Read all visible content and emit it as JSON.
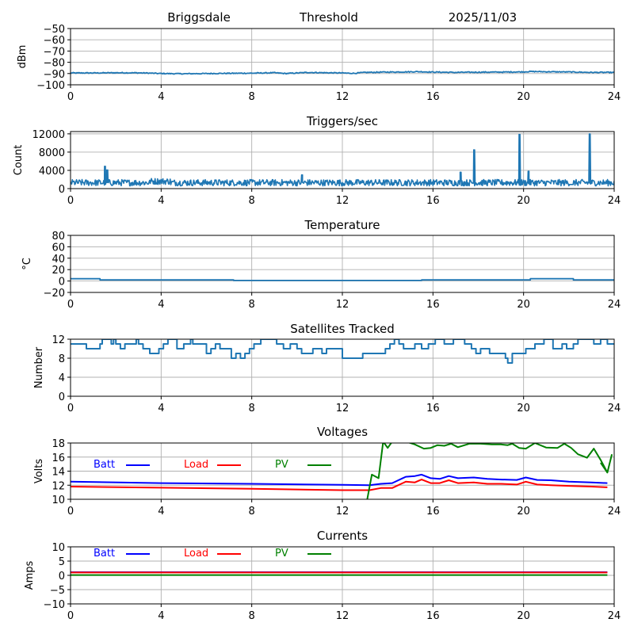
{
  "header": {
    "station": "Briggsdale",
    "mode": "Threshold",
    "date": "2025/11/03"
  },
  "colors": {
    "default_series": "#1f77b4",
    "batt": "#0000ff",
    "load": "#ff0000",
    "pv": "#008000",
    "grid": "#b0b0b0"
  },
  "chart_data": [
    {
      "id": "threshold",
      "type": "line",
      "title": "",
      "xlabel": "",
      "ylabel": "dBm",
      "xlim": [
        0,
        24
      ],
      "ylim": [
        -100,
        -50
      ],
      "xticks": [
        0,
        4,
        8,
        12,
        16,
        20,
        24
      ],
      "yticks": [
        -100,
        -90,
        -80,
        -70,
        -60,
        -50
      ],
      "ytick_labels": [
        "−100",
        "−90",
        "−80",
        "−70",
        "−60",
        "−50"
      ],
      "grid": true,
      "series": [
        {
          "name": "Threshold",
          "color": "#1f77b4",
          "x": [
            0,
            1,
            2,
            3,
            3.5,
            4,
            5,
            6,
            7,
            8,
            8.5,
            9,
            9.5,
            10,
            10.5,
            11,
            12,
            12.5,
            13,
            14,
            15,
            15.3,
            16,
            17,
            18,
            19,
            20,
            20.3,
            21,
            22,
            23,
            24
          ],
          "y": [
            -89.5,
            -89.5,
            -89.3,
            -89.4,
            -89.6,
            -90,
            -90.2,
            -90,
            -89.8,
            -89.7,
            -89.5,
            -89.3,
            -90,
            -89.5,
            -89,
            -89.2,
            -89.5,
            -89.8,
            -89,
            -88.7,
            -88.5,
            -88.3,
            -88.7,
            -89,
            -88.8,
            -88.7,
            -88.5,
            -88.2,
            -88.4,
            -88.6,
            -89,
            -89
          ]
        }
      ]
    },
    {
      "id": "triggers",
      "type": "line",
      "title": "Triggers/sec",
      "xlabel": "",
      "ylabel": "Count",
      "xlim": [
        0,
        24
      ],
      "ylim": [
        0,
        12500
      ],
      "xticks": [
        0,
        4,
        8,
        12,
        16,
        20,
        24
      ],
      "yticks": [
        0,
        4000,
        8000,
        12000
      ],
      "ytick_labels": [
        "0",
        "4000",
        "8000",
        "12000"
      ],
      "grid": true,
      "baseline_mean": 1300,
      "series": [
        {
          "name": "Triggers",
          "color": "#1f77b4",
          "spikes": [
            {
              "x": 1.5,
              "y": 4900
            },
            {
              "x": 1.6,
              "y": 4100
            },
            {
              "x": 10.2,
              "y": 3000
            },
            {
              "x": 17.2,
              "y": 3600
            },
            {
              "x": 17.8,
              "y": 8500
            },
            {
              "x": 19.8,
              "y": 11900
            },
            {
              "x": 20.2,
              "y": 3800
            },
            {
              "x": 22.9,
              "y": 12000
            }
          ]
        }
      ]
    },
    {
      "id": "temperature",
      "type": "line",
      "title": "Temperature",
      "xlabel": "",
      "ylabel": "°C",
      "xlim": [
        0,
        24
      ],
      "ylim": [
        -20,
        80
      ],
      "xticks": [
        0,
        4,
        8,
        12,
        16,
        20,
        24
      ],
      "yticks": [
        -20,
        0,
        20,
        40,
        60,
        80
      ],
      "ytick_labels": [
        "−20",
        "0",
        "20",
        "40",
        "60",
        "80"
      ],
      "grid": true,
      "series": [
        {
          "name": "Temperature",
          "color": "#1f77b4",
          "x": [
            0,
            1.3,
            1.3,
            7.2,
            7.2,
            15.5,
            15.5,
            20.3,
            20.3,
            22.2,
            22.2,
            24
          ],
          "y": [
            4,
            4,
            2,
            2,
            1,
            1,
            2,
            2,
            4,
            4,
            2,
            2
          ]
        }
      ]
    },
    {
      "id": "satellites",
      "type": "line",
      "title": "Satellites Tracked",
      "xlabel": "",
      "ylabel": "Number",
      "xlim": [
        0,
        24
      ],
      "ylim": [
        0,
        12
      ],
      "xticks": [
        0,
        4,
        8,
        12,
        16,
        20,
        24
      ],
      "yticks": [
        0,
        4,
        8,
        12
      ],
      "ytick_labels": [
        "0",
        "4",
        "8",
        "12"
      ],
      "grid": true,
      "series": [
        {
          "name": "Satellites",
          "color": "#1f77b4",
          "x": [
            0,
            0.7,
            1.3,
            1.4,
            1.5,
            1.8,
            1.9,
            2,
            2.1,
            2.2,
            2.4,
            2.6,
            2.9,
            3,
            3.2,
            3.5,
            3.9,
            4.1,
            4.3,
            4.4,
            4.7,
            5,
            5.3,
            5.4,
            5.5,
            5.7,
            6,
            6.2,
            6.4,
            6.6,
            6.8,
            7.1,
            7.3,
            7.5,
            7.7,
            7.9,
            8.1,
            8.4,
            8.7,
            9.1,
            9.4,
            9.7,
            10,
            10.2,
            10.7,
            11,
            11.1,
            11.3,
            11.5,
            11.6,
            12,
            12.5,
            12.9,
            13.2,
            13.9,
            14.1,
            14.3,
            14.5,
            14.7,
            15.2,
            15.5,
            15.8,
            16.1,
            16.5,
            16.9,
            17.4,
            17.7,
            17.9,
            18.1,
            18.5,
            18.9,
            19.2,
            19.3,
            19.5,
            19.8,
            20.1,
            20.5,
            20.9,
            21.3,
            21.7,
            21.9,
            22.2,
            22.4,
            22.6,
            22.9,
            23.1,
            23.4,
            23.7,
            24
          ],
          "y": [
            11,
            10,
            11,
            12,
            12,
            11,
            12,
            11,
            11,
            10,
            11,
            11,
            12,
            11,
            10,
            9,
            10,
            11,
            12,
            12,
            10,
            11,
            12,
            11,
            11,
            11,
            9,
            10,
            11,
            10,
            10,
            8,
            9,
            8,
            9,
            10,
            11,
            12,
            12,
            11,
            10,
            11,
            10,
            9,
            10,
            10,
            9,
            10,
            10,
            10,
            8,
            8,
            9,
            9,
            10,
            11,
            12,
            11,
            10,
            11,
            10,
            11,
            12,
            11,
            12,
            11,
            10,
            9,
            10,
            9,
            9,
            8,
            7,
            9,
            9,
            10,
            11,
            12,
            10,
            11,
            10,
            11,
            12,
            12,
            12,
            11,
            12,
            11,
            11
          ]
        }
      ]
    },
    {
      "id": "voltages",
      "type": "line",
      "title": "Voltages",
      "xlabel": "",
      "ylabel": "Volts",
      "xlim": [
        0,
        24
      ],
      "ylim": [
        10,
        18
      ],
      "xticks": [
        0,
        4,
        8,
        12,
        16,
        20,
        24
      ],
      "yticks": [
        10,
        12,
        14,
        16,
        18
      ],
      "ytick_labels": [
        "10",
        "12",
        "14",
        "16",
        "18"
      ],
      "grid": true,
      "legend": {
        "placement": "top-left",
        "entries": [
          "Batt",
          "Load",
          "PV"
        ]
      },
      "series": [
        {
          "name": "Batt",
          "color": "#0000ff",
          "x": [
            0,
            4,
            8,
            12,
            13.2,
            13.7,
            14.2,
            14.8,
            15.2,
            15.5,
            15.9,
            16.3,
            16.7,
            17.1,
            17.8,
            18.4,
            19.0,
            19.7,
            20.1,
            20.6,
            21.2,
            22.0,
            23.0,
            23.7
          ],
          "y": [
            12.5,
            12.3,
            12.2,
            12.05,
            12.0,
            12.2,
            12.3,
            13.2,
            13.3,
            13.5,
            13.0,
            12.9,
            13.3,
            13.0,
            13.1,
            12.9,
            12.8,
            12.75,
            13.1,
            12.75,
            12.7,
            12.5,
            12.4,
            12.3
          ]
        },
        {
          "name": "Load",
          "color": "#ff0000",
          "x": [
            0,
            4,
            8,
            12,
            13.2,
            13.7,
            14.2,
            14.8,
            15.2,
            15.5,
            15.9,
            16.3,
            16.7,
            17.1,
            17.8,
            18.4,
            19.0,
            19.7,
            20.1,
            20.6,
            21.2,
            22.0,
            23.0,
            23.7
          ],
          "y": [
            11.8,
            11.65,
            11.5,
            11.3,
            11.3,
            11.6,
            11.6,
            12.5,
            12.4,
            12.8,
            12.3,
            12.3,
            12.7,
            12.3,
            12.4,
            12.2,
            12.2,
            12.1,
            12.5,
            12.1,
            12.0,
            11.9,
            11.8,
            11.7
          ]
        },
        {
          "name": "PV",
          "color": "#008000",
          "x": [
            13.1,
            13.3,
            13.6,
            13.8,
            14.0,
            14.2,
            14.7,
            15.2,
            15.6,
            15.9,
            16.2,
            16.5,
            16.8,
            17.1,
            17.6,
            18.1,
            18.6,
            19.0,
            19.3,
            19.5,
            19.8,
            20.1,
            20.5,
            21.0,
            21.5,
            21.8,
            22.1,
            22.4,
            22.8,
            23.1,
            23.4,
            23.7
          ],
          "y": [
            10.0,
            13.5,
            13.0,
            18.2,
            17.3,
            18.2,
            18.3,
            17.8,
            17.2,
            17.3,
            17.7,
            17.6,
            17.9,
            17.4,
            17.9,
            17.9,
            17.8,
            17.8,
            17.7,
            17.9,
            17.3,
            17.2,
            18.0,
            17.35,
            17.3,
            17.9,
            17.3,
            16.4,
            15.9,
            17.2,
            15.6,
            13.8
          ]
        },
        {
          "name": "PV-end",
          "color": "#008000",
          "x": [
            23.4,
            23.7,
            23.9
          ],
          "y": [
            15.2,
            13.8,
            16.4
          ]
        }
      ]
    },
    {
      "id": "currents",
      "type": "line",
      "title": "Currents",
      "xlabel": "",
      "ylabel": "Amps",
      "xlim": [
        0,
        24
      ],
      "ylim": [
        -10,
        10
      ],
      "xticks": [
        0,
        4,
        8,
        12,
        16,
        20,
        24
      ],
      "yticks": [
        -10,
        -5,
        0,
        5,
        10
      ],
      "ytick_labels": [
        "−10",
        "−5",
        "0",
        "5",
        "10"
      ],
      "grid": true,
      "legend": {
        "placement": "top-left",
        "entries": [
          "Batt",
          "Load",
          "PV"
        ]
      },
      "series": [
        {
          "name": "Batt",
          "color": "#0000ff",
          "x": [
            0,
            23.7
          ],
          "y": [
            1.1,
            1.1
          ]
        },
        {
          "name": "Load",
          "color": "#ff0000",
          "x": [
            0,
            23.7
          ],
          "y": [
            1.0,
            1.0
          ]
        },
        {
          "name": "PV",
          "color": "#008000",
          "x": [
            0,
            23.7
          ],
          "y": [
            0.1,
            0.1
          ]
        }
      ]
    }
  ]
}
